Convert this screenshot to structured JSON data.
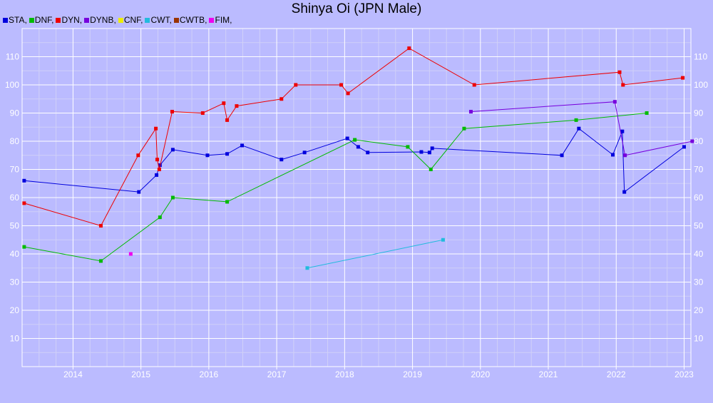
{
  "chart_data": {
    "type": "line",
    "title": "Shinya Oi (JPN Male)",
    "xlabel": "",
    "ylabel": "",
    "x_ticks": [
      "2014",
      "2015",
      "2016",
      "2017",
      "2018",
      "2019",
      "2020",
      "2021",
      "2022",
      "2023"
    ],
    "y_ticks": [
      10,
      20,
      30,
      40,
      50,
      60,
      70,
      80,
      90,
      100,
      110
    ],
    "xlim": [
      2013.25,
      2023.1
    ],
    "ylim": [
      0,
      120
    ],
    "grid": true,
    "legend_position": "top-left",
    "series": [
      {
        "name": "STA,",
        "color": "#0000dd",
        "points": [
          [
            2013.28,
            66
          ],
          [
            2014.97,
            62
          ],
          [
            2015.23,
            68
          ],
          [
            2015.28,
            71.5
          ],
          [
            2015.47,
            77
          ],
          [
            2015.98,
            75
          ],
          [
            2016.27,
            75.5
          ],
          [
            2016.49,
            78.5
          ],
          [
            2017.07,
            73.5
          ],
          [
            2017.41,
            76
          ],
          [
            2018.04,
            81
          ],
          [
            2018.2,
            78
          ],
          [
            2018.34,
            76
          ],
          [
            2019.13,
            76.2
          ],
          [
            2019.25,
            76
          ],
          [
            2019.29,
            77.5
          ],
          [
            2021.2,
            75
          ],
          [
            2021.45,
            84.5
          ],
          [
            2021.95,
            75.2
          ],
          [
            2022.09,
            83.5
          ],
          [
            2022.12,
            62
          ],
          [
            2023.0,
            78
          ]
        ]
      },
      {
        "name": "DNF,",
        "color": "#00bb00",
        "points": [
          [
            2013.28,
            42.5
          ],
          [
            2014.41,
            37.5
          ],
          [
            2015.28,
            53
          ],
          [
            2015.47,
            60
          ],
          [
            2016.27,
            58.5
          ],
          [
            2018.15,
            80.5
          ],
          [
            2018.93,
            78
          ],
          [
            2019.27,
            70
          ],
          [
            2019.76,
            84.5
          ],
          [
            2021.41,
            87.5
          ],
          [
            2022.45,
            90
          ]
        ]
      },
      {
        "name": "DYN,",
        "color": "#ee0000",
        "points": [
          [
            2013.28,
            58
          ],
          [
            2014.41,
            50
          ],
          [
            2014.96,
            75
          ],
          [
            2015.22,
            84.5
          ],
          [
            2015.24,
            73.5
          ],
          [
            2015.27,
            70
          ],
          [
            2015.46,
            90.5
          ],
          [
            2015.91,
            90
          ],
          [
            2016.22,
            93.5
          ],
          [
            2016.27,
            87.5
          ],
          [
            2016.41,
            92.5
          ],
          [
            2017.07,
            95
          ],
          [
            2017.28,
            100
          ],
          [
            2017.95,
            100
          ],
          [
            2018.05,
            97
          ],
          [
            2018.95,
            113
          ],
          [
            2019.91,
            100
          ],
          [
            2022.05,
            104.5
          ],
          [
            2022.1,
            100
          ],
          [
            2022.98,
            102.5
          ]
        ]
      },
      {
        "name": "DYNB,",
        "color": "#7700dd",
        "points": [
          [
            2019.86,
            90.5
          ],
          [
            2021.98,
            94
          ],
          [
            2022.13,
            75
          ],
          [
            2023.12,
            80
          ]
        ]
      },
      {
        "name": "CNF,",
        "color": "#eeee00",
        "points": []
      },
      {
        "name": "CWT,",
        "color": "#22bbdd",
        "points": [
          [
            2017.45,
            35
          ],
          [
            2019.45,
            45
          ]
        ]
      },
      {
        "name": "CWTB,",
        "color": "#993300",
        "points": []
      },
      {
        "name": "FIM,",
        "color": "#ee00ee",
        "points": [
          [
            2014.85,
            40
          ]
        ]
      }
    ]
  }
}
